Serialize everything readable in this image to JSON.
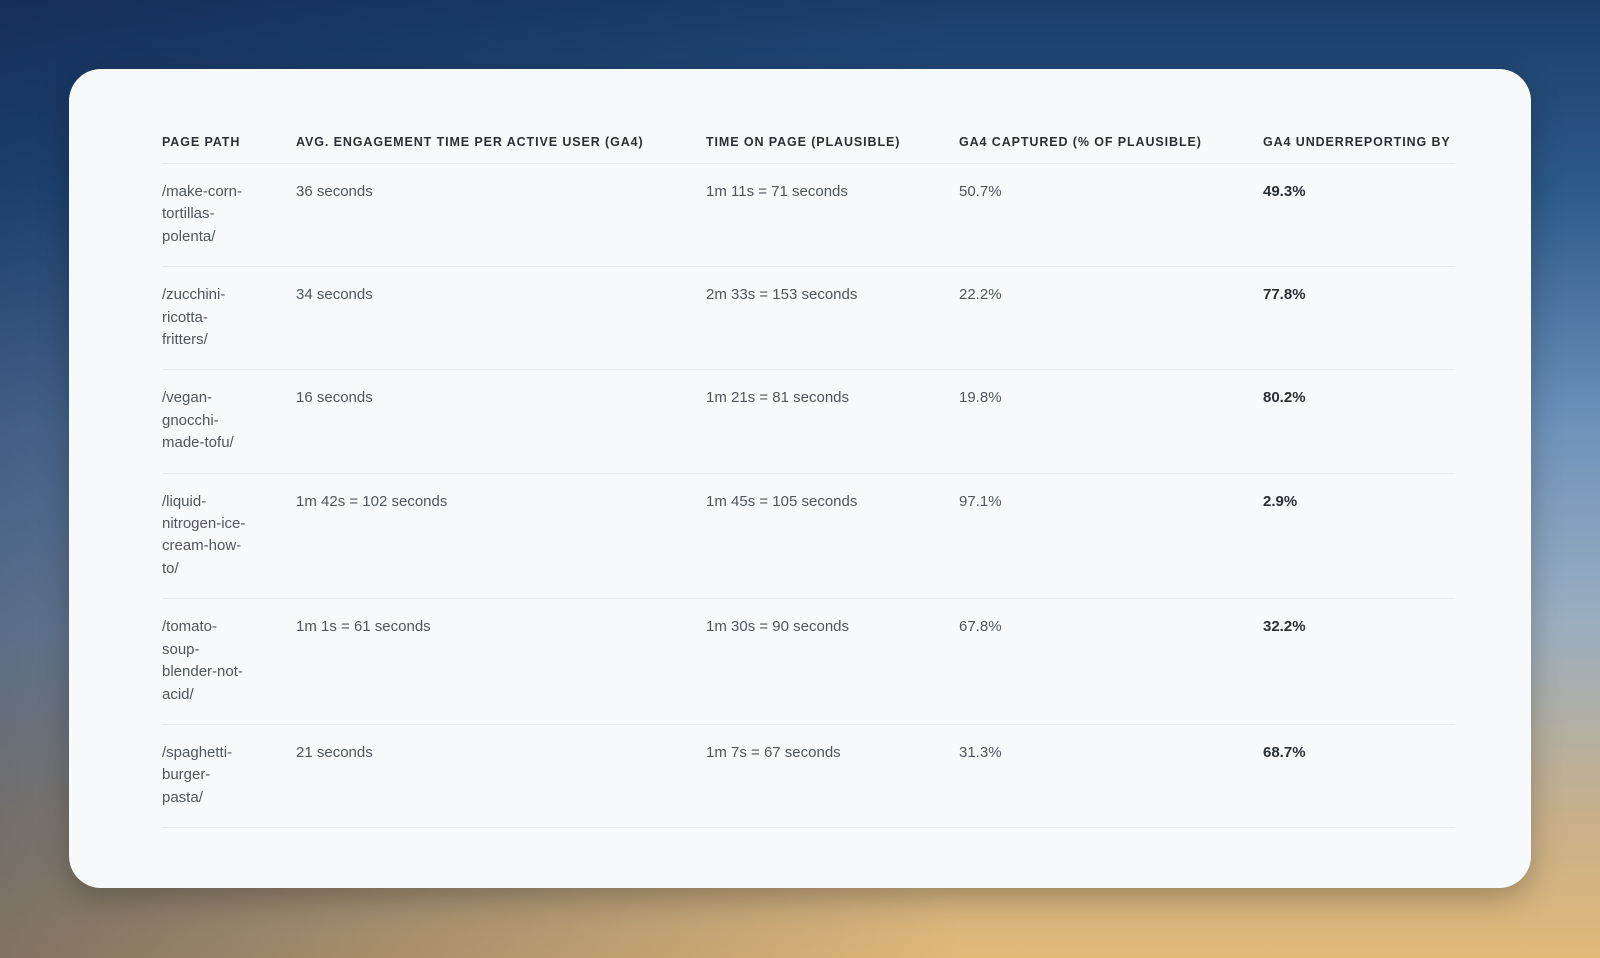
{
  "table": {
    "headers": [
      "PAGE PATH",
      "AVG. ENGAGEMENT TIME PER ACTIVE USER (GA4)",
      "TIME ON PAGE (PLAUSIBLE)",
      "GA4 CAPTURED (% OF PLAUSIBLE)",
      "GA4 UNDERREPORTING BY"
    ],
    "rows": [
      [
        "/make-corn-tortillas-polenta/",
        "36 seconds",
        "1m 11s = 71 seconds",
        "50.7%",
        "49.3%"
      ],
      [
        "/zucchini-ricotta-fritters/",
        "34 seconds",
        "2m 33s = 153 seconds",
        "22.2%",
        "77.8%"
      ],
      [
        "/vegan-gnocchi-made-tofu/",
        "16 seconds",
        "1m 21s = 81 seconds",
        "19.8%",
        "80.2%"
      ],
      [
        "/liquid-nitrogen-ice-cream-how-to/",
        "1m 42s = 102 seconds",
        "1m 45s = 105 seconds",
        "97.1%",
        "2.9%"
      ],
      [
        "/tomato-soup-blender-not-acid/",
        "1m 1s = 61 seconds",
        "1m 30s = 90 seconds",
        "67.8%",
        "32.2%"
      ],
      [
        "/spaghetti-burger-pasta/",
        "21 seconds",
        "1m 7s = 67 seconds",
        "31.3%",
        "68.7%"
      ]
    ]
  }
}
